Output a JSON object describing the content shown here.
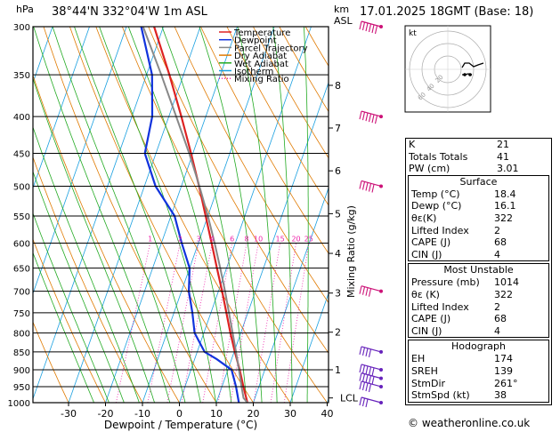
{
  "header": {
    "location": "38°44'N  332°04'W  1m  ASL",
    "datetime": "17.01.2025  18GMT  (Base: 18)",
    "pressure_unit": "hPa",
    "height_unit_line1": "km",
    "height_unit_line2": "ASL"
  },
  "chart_data": {
    "type": "line",
    "title": "",
    "xlabel": "Dewpoint / Temperature (°C)",
    "ylabel": "hPa",
    "right_axis_label": "Mixing Ratio (g/kg)",
    "xlim": [
      -35,
      40
    ],
    "ylim": [
      1000,
      300
    ],
    "x_ticks": [
      -30,
      -20,
      -10,
      0,
      10,
      20,
      30,
      40
    ],
    "pressure_ticks": [
      300,
      350,
      400,
      450,
      500,
      550,
      600,
      650,
      700,
      750,
      800,
      850,
      900,
      950,
      1000
    ],
    "km_ticks": [
      {
        "km": "1",
        "p": 900
      },
      {
        "km": "2",
        "p": 798
      },
      {
        "km": "3",
        "p": 704
      },
      {
        "km": "4",
        "p": 620
      },
      {
        "km": "5",
        "p": 546
      },
      {
        "km": "6",
        "p": 476
      },
      {
        "km": "7",
        "p": 415
      },
      {
        "km": "8",
        "p": 362
      }
    ],
    "lcl": {
      "label": "LCL",
      "p": 985
    },
    "mixing_ratio_labels": [
      "1",
      "2",
      "3",
      "4",
      "6",
      "8",
      "10",
      "15",
      "20",
      "25"
    ],
    "mixing_ratio_values": [
      1,
      2,
      3,
      4,
      6,
      8,
      10,
      15,
      20,
      25
    ],
    "legend": [
      {
        "name": "Temperature",
        "color": "#dd2222",
        "style": "solid"
      },
      {
        "name": "Dewpoint",
        "color": "#1133dd",
        "style": "solid"
      },
      {
        "name": "Parcel Trajectory",
        "color": "#888888",
        "style": "solid"
      },
      {
        "name": "Dry Adiabat",
        "color": "#e07a00",
        "style": "solid"
      },
      {
        "name": "Wet Adiabat",
        "color": "#22aa22",
        "style": "solid"
      },
      {
        "name": "Isotherm",
        "color": "#1aa0e0",
        "style": "solid"
      },
      {
        "name": "Mixing Ratio",
        "color": "#ee22aa",
        "style": "dotted"
      }
    ],
    "legend_position": "top-right",
    "series": [
      {
        "name": "Temperature",
        "color": "#dd2222",
        "points": [
          [
            1000,
            18.4
          ],
          [
            950,
            15.8
          ],
          [
            900,
            13.2
          ],
          [
            850,
            10.2
          ],
          [
            800,
            7.2
          ],
          [
            750,
            4.2
          ],
          [
            700,
            1.0
          ],
          [
            650,
            -2.6
          ],
          [
            600,
            -6.4
          ],
          [
            550,
            -10.6
          ],
          [
            500,
            -15.2
          ],
          [
            450,
            -20.5
          ],
          [
            400,
            -26.6
          ],
          [
            350,
            -33.8
          ],
          [
            300,
            -42.5
          ]
        ]
      },
      {
        "name": "Dewpoint",
        "color": "#1133dd",
        "points": [
          [
            1000,
            16.1
          ],
          [
            950,
            13.8
          ],
          [
            900,
            11.0
          ],
          [
            870,
            6.0
          ],
          [
            850,
            2.0
          ],
          [
            800,
            -2.5
          ],
          [
            750,
            -5.0
          ],
          [
            700,
            -8.0
          ],
          [
            650,
            -10.0
          ],
          [
            600,
            -14.5
          ],
          [
            550,
            -19.0
          ],
          [
            500,
            -27.0
          ],
          [
            450,
            -33.0
          ],
          [
            400,
            -34.5
          ],
          [
            350,
            -38.5
          ],
          [
            300,
            -46.0
          ]
        ]
      },
      {
        "name": "Parcel Trajectory",
        "color": "#888888",
        "points": [
          [
            1000,
            18.4
          ],
          [
            985,
            16.9
          ],
          [
            950,
            15.3
          ],
          [
            900,
            13.0
          ],
          [
            850,
            10.5
          ],
          [
            800,
            7.8
          ],
          [
            750,
            4.9
          ],
          [
            700,
            1.8
          ],
          [
            650,
            -1.7
          ],
          [
            600,
            -5.6
          ],
          [
            550,
            -10.0
          ],
          [
            500,
            -15.1
          ],
          [
            450,
            -21.0
          ],
          [
            400,
            -28.0
          ],
          [
            350,
            -36.0
          ],
          [
            300,
            -45.5
          ]
        ]
      }
    ],
    "wind_barbs": [
      {
        "p": 1000,
        "speed_kt": 38,
        "dir": 261
      },
      {
        "p": 950,
        "speed_kt": 45,
        "dir": 265
      },
      {
        "p": 925,
        "speed_kt": 50,
        "dir": 268
      },
      {
        "p": 900,
        "speed_kt": 50,
        "dir": 270
      },
      {
        "p": 850,
        "speed_kt": 45,
        "dir": 270
      },
      {
        "p": 700,
        "speed_kt": 40,
        "dir": 275
      },
      {
        "p": 500,
        "speed_kt": 55,
        "dir": 280
      },
      {
        "p": 400,
        "speed_kt": 60,
        "dir": 280
      },
      {
        "p": 300,
        "speed_kt": 70,
        "dir": 280
      }
    ]
  },
  "hodograph": {
    "label": "kt",
    "ring_labels": [
      "20",
      "40",
      "60"
    ]
  },
  "indices": [
    {
      "label": "K",
      "value": "21"
    },
    {
      "label": "Totals Totals",
      "value": "41"
    },
    {
      "label": "PW (cm)",
      "value": "3.01"
    }
  ],
  "surface": {
    "title": "Surface",
    "rows": [
      {
        "label": "Temp (°C)",
        "value": "18.4"
      },
      {
        "label": "Dewp (°C)",
        "value": "16.1"
      },
      {
        "label": "θε(K)",
        "value": "322"
      },
      {
        "label": "Lifted Index",
        "value": "2"
      },
      {
        "label": "CAPE (J)",
        "value": "68"
      },
      {
        "label": "CIN (J)",
        "value": "4"
      }
    ]
  },
  "most_unstable": {
    "title": "Most Unstable",
    "rows": [
      {
        "label": "Pressure (mb)",
        "value": "1014"
      },
      {
        "label": "θε (K)",
        "value": "322"
      },
      {
        "label": "Lifted Index",
        "value": "2"
      },
      {
        "label": "CAPE (J)",
        "value": "68"
      },
      {
        "label": "CIN (J)",
        "value": "4"
      }
    ]
  },
  "hodograph_table": {
    "title": "Hodograph",
    "rows": [
      {
        "label": "EH",
        "value": "174"
      },
      {
        "label": "SREH",
        "value": "139"
      },
      {
        "label": "StmDir",
        "value": "261°"
      },
      {
        "label": "StmSpd (kt)",
        "value": "38"
      }
    ]
  },
  "footer": {
    "copyright": "© weatheronline.co.uk"
  }
}
